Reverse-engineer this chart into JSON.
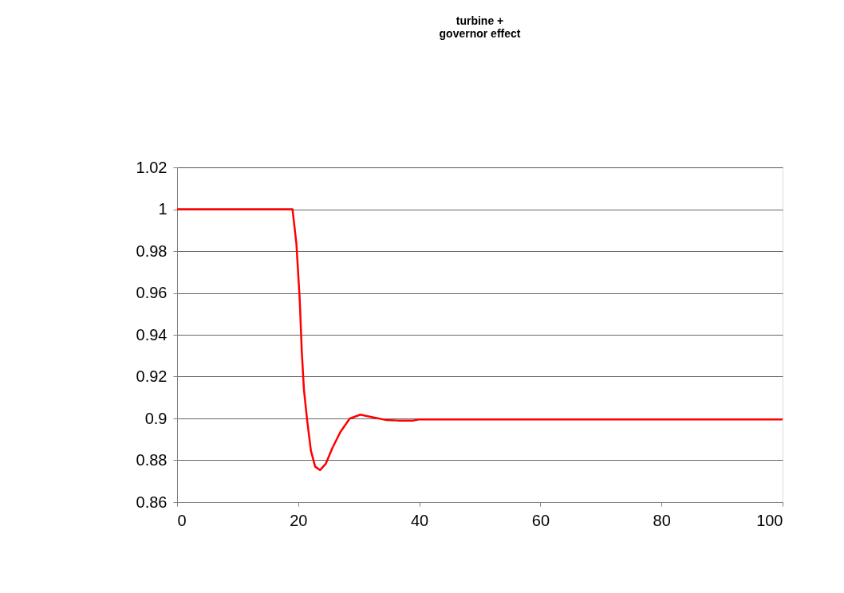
{
  "chart_data": {
    "type": "line",
    "title": [
      "turbine +",
      "governor effect"
    ],
    "x": [
      0,
      19.06,
      19.7,
      20.25,
      20.6,
      20.95,
      21.5,
      22.1,
      22.8,
      23.6,
      24.55,
      25.65,
      26.97,
      28.5,
      30.26,
      32.45,
      34.65,
      36.5,
      39.0,
      39.9,
      100
    ],
    "series": [
      {
        "color": "#ff0000",
        "values": [
          1,
          1,
          0.9837,
          0.957,
          0.9316,
          0.9138,
          0.8986,
          0.8846,
          0.877,
          0.8753,
          0.8783,
          0.8859,
          0.8935,
          0.8999,
          0.9018,
          0.9005,
          0.8992,
          0.899,
          0.899,
          0.8995,
          0.8995
        ]
      }
    ],
    "xlim": [
      0,
      100
    ],
    "xticks": [
      0,
      20,
      40,
      60,
      80,
      100
    ],
    "ylim": [
      0.86,
      1.02
    ],
    "yticks": [
      0.86,
      0.88,
      0.9,
      0.92,
      0.94,
      0.96,
      0.98,
      1,
      1.02
    ],
    "grid": "y",
    "marker": "none",
    "line_style": "solid",
    "legend": false
  }
}
